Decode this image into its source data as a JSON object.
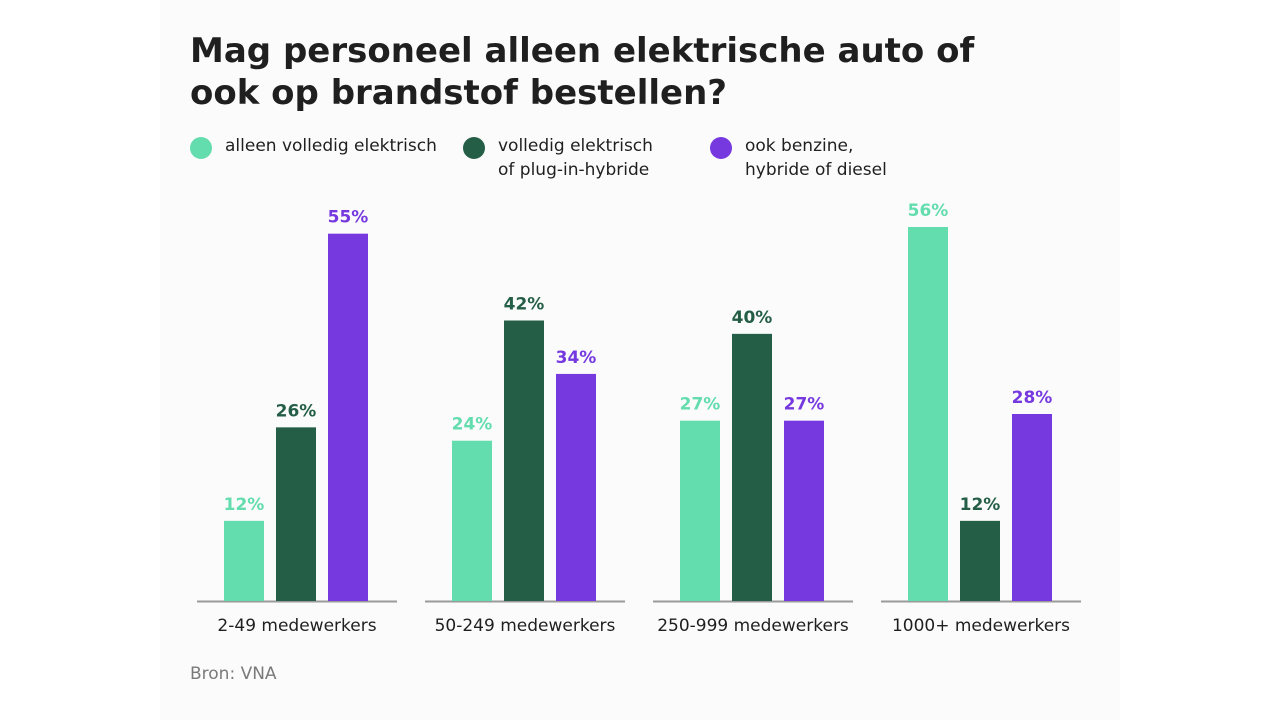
{
  "title": "Mag personeel alleen elektrische auto of ook op brandstof bestellen?",
  "source": "Bron: VNA",
  "colors": {
    "s0": "#63dcae",
    "s1": "#245e47",
    "s2": "#7639df",
    "axis": "#9a9a9a",
    "text": "#1f1f1f"
  },
  "legend": [
    {
      "label": "alleen volledig elektrisch"
    },
    {
      "label": "volledig elektrisch\nof plug-in-hybride"
    },
    {
      "label": "ook benzine,\nhybride of diesel"
    }
  ],
  "chart_data": {
    "type": "bar",
    "title": "Mag personeel alleen elektrische auto of ook op brandstof bestellen?",
    "categories": [
      "2-49 medewerkers",
      "50-249 medewerkers",
      "250-999 medewerkers",
      "1000+ medewerkers"
    ],
    "series": [
      {
        "name": "alleen volledig elektrisch",
        "values": [
          12,
          24,
          27,
          56
        ],
        "color": "#63dcae"
      },
      {
        "name": "volledig elektrisch of plug-in-hybride",
        "values": [
          26,
          42,
          40,
          12
        ],
        "color": "#245e47"
      },
      {
        "name": "ook benzine, hybride of diesel",
        "values": [
          55,
          34,
          27,
          28
        ],
        "color": "#7639df"
      }
    ],
    "value_suffix": "%",
    "ylim": [
      0,
      56
    ],
    "grid": false,
    "legend_position": "top"
  }
}
